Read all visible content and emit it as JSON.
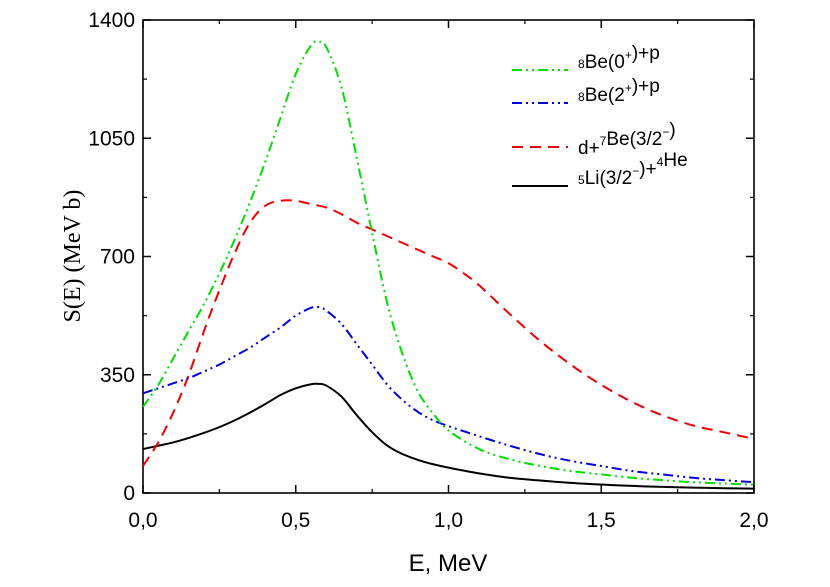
{
  "chart_data": {
    "type": "line",
    "xlabel": "E, MeV",
    "ylabel": "S(E) (MeV b)",
    "xlim": [
      0.0,
      2.0
    ],
    "ylim": [
      0,
      1400
    ],
    "xticks": [
      0.0,
      0.5,
      1.0,
      1.5,
      2.0
    ],
    "xtick_labels": [
      "0,0",
      "0,5",
      "1,0",
      "1,5",
      "2,0"
    ],
    "yticks": [
      0,
      350,
      700,
      1050,
      1400
    ],
    "ytick_labels": [
      "0",
      "350",
      "700",
      "1050",
      "1400"
    ],
    "legend_position": "top-right",
    "series": [
      {
        "name": "8Be(0+)+p",
        "legend": {
          "pre": "",
          "sup1": "8",
          "mid1": "Be(0",
          "sup2": "+",
          "mid2": ")+p",
          "sup3": "",
          "post": ""
        },
        "color": "#00dd00",
        "dash": "10,4,2,4,2,4",
        "x": [
          0.0,
          0.05,
          0.1,
          0.15,
          0.2,
          0.25,
          0.3,
          0.35,
          0.4,
          0.45,
          0.5,
          0.55,
          0.575,
          0.6,
          0.65,
          0.7,
          0.75,
          0.8,
          0.85,
          0.9,
          0.95,
          1.0,
          1.1,
          1.2,
          1.3,
          1.4,
          1.5,
          1.6,
          1.7,
          1.8,
          1.9,
          2.0
        ],
        "y": [
          255,
          320,
          400,
          480,
          560,
          650,
          750,
          860,
          980,
          1110,
          1240,
          1325,
          1335,
          1320,
          1200,
          990,
          770,
          560,
          410,
          300,
          235,
          185,
          130,
          100,
          80,
          65,
          55,
          45,
          38,
          32,
          28,
          25
        ]
      },
      {
        "name": "8Be(2+)+p",
        "legend": {
          "pre": "",
          "sup1": "8",
          "mid1": "Be(2",
          "sup2": "+",
          "mid2": ")+p",
          "sup3": "",
          "post": ""
        },
        "color": "#0000dd",
        "dash": "10,4,2,4,2,4",
        "x": [
          0.0,
          0.05,
          0.1,
          0.15,
          0.2,
          0.25,
          0.3,
          0.35,
          0.4,
          0.45,
          0.5,
          0.55,
          0.575,
          0.6,
          0.65,
          0.7,
          0.75,
          0.8,
          0.85,
          0.9,
          0.95,
          1.0,
          1.1,
          1.2,
          1.3,
          1.4,
          1.5,
          1.6,
          1.7,
          1.8,
          1.9,
          2.0
        ],
        "y": [
          295,
          310,
          325,
          340,
          360,
          380,
          405,
          430,
          460,
          490,
          525,
          548,
          550,
          540,
          500,
          440,
          380,
          320,
          275,
          240,
          215,
          198,
          168,
          140,
          115,
          95,
          80,
          65,
          55,
          45,
          38,
          32
        ]
      },
      {
        "name": "d+7Be(3/2-)",
        "legend": {
          "pre": "d+",
          "sup1": "7",
          "mid1": "Be(3/2",
          "sup2": "−",
          "mid2": ")",
          "sup3": "",
          "post": ""
        },
        "color": "#ee0000",
        "dash": "11,7",
        "x": [
          0.0,
          0.05,
          0.1,
          0.15,
          0.2,
          0.25,
          0.3,
          0.35,
          0.4,
          0.45,
          0.5,
          0.55,
          0.6,
          0.65,
          0.7,
          0.75,
          0.8,
          0.85,
          0.9,
          0.95,
          1.0,
          1.05,
          1.1,
          1.2,
          1.3,
          1.4,
          1.5,
          1.6,
          1.7,
          1.8,
          1.9,
          2.0
        ],
        "y": [
          80,
          150,
          240,
          350,
          480,
          600,
          710,
          800,
          850,
          865,
          865,
          855,
          845,
          825,
          800,
          780,
          760,
          740,
          720,
          700,
          680,
          650,
          615,
          530,
          450,
          380,
          320,
          270,
          230,
          200,
          180,
          160
        ]
      },
      {
        "name": "5Li(3/2-)+4He",
        "legend": {
          "pre": "",
          "sup1": "5",
          "mid1": "Li(3/2",
          "sup2": "−",
          "mid2": ")+",
          "sup3": "4",
          "post": "He"
        },
        "color": "#000000",
        "dash": "",
        "x": [
          0.0,
          0.05,
          0.1,
          0.15,
          0.2,
          0.25,
          0.3,
          0.35,
          0.4,
          0.45,
          0.5,
          0.55,
          0.575,
          0.6,
          0.65,
          0.7,
          0.75,
          0.8,
          0.85,
          0.9,
          0.95,
          1.0,
          1.1,
          1.2,
          1.3,
          1.4,
          1.5,
          1.6,
          1.7,
          1.8,
          1.9,
          2.0
        ],
        "y": [
          130,
          140,
          150,
          163,
          178,
          195,
          215,
          238,
          263,
          290,
          310,
          322,
          323,
          318,
          285,
          230,
          180,
          140,
          115,
          98,
          85,
          75,
          58,
          45,
          37,
          30,
          25,
          21,
          18,
          16,
          14,
          13
        ]
      }
    ]
  }
}
